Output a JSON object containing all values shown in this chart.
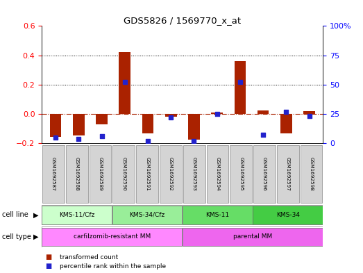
{
  "title": "GDS5826 / 1569770_x_at",
  "samples": [
    "GSM1692587",
    "GSM1692588",
    "GSM1692589",
    "GSM1692590",
    "GSM1692591",
    "GSM1692592",
    "GSM1692593",
    "GSM1692594",
    "GSM1692595",
    "GSM1692596",
    "GSM1692597",
    "GSM1692598"
  ],
  "transformed_count": [
    -0.155,
    -0.145,
    -0.07,
    0.42,
    -0.13,
    -0.02,
    -0.175,
    0.01,
    0.36,
    0.025,
    -0.13,
    0.02
  ],
  "percentile_rank": [
    5,
    4,
    6,
    52,
    2,
    22,
    2,
    25,
    52,
    7,
    27,
    23
  ],
  "cell_line_groups": [
    {
      "label": "KMS-11/Cfz",
      "start": 0,
      "end": 3,
      "color": "#ccffcc"
    },
    {
      "label": "KMS-34/Cfz",
      "start": 3,
      "end": 6,
      "color": "#99ee99"
    },
    {
      "label": "KMS-11",
      "start": 6,
      "end": 9,
      "color": "#66dd66"
    },
    {
      "label": "KMS-34",
      "start": 9,
      "end": 12,
      "color": "#44cc44"
    }
  ],
  "cell_type_groups": [
    {
      "label": "carfilzomib-resistant MM",
      "start": 0,
      "end": 6,
      "color": "#ff88ff"
    },
    {
      "label": "parental MM",
      "start": 6,
      "end": 12,
      "color": "#ee66ee"
    }
  ],
  "bar_color": "#aa2200",
  "dot_color": "#2222cc",
  "ylim_left": [
    -0.2,
    0.6
  ],
  "ylim_right": [
    0,
    100
  ],
  "yticks_left": [
    -0.2,
    0.0,
    0.2,
    0.4,
    0.6
  ],
  "yticks_right": [
    0,
    25,
    50,
    75,
    100
  ],
  "bar_width": 0.5,
  "dot_size": 18
}
